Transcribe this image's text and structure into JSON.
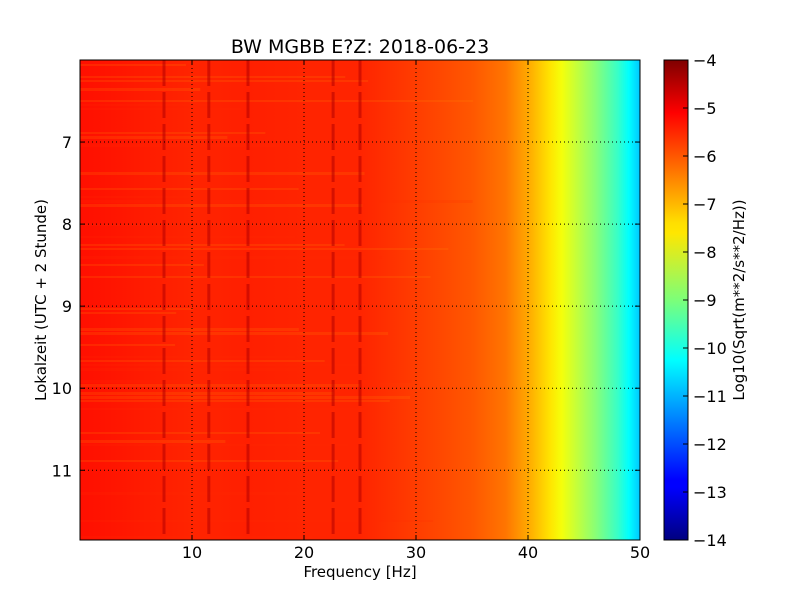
{
  "chart_data": {
    "type": "heatmap",
    "title": "BW MGBB E?Z: 2018-06-23",
    "xlabel": "Frequency [Hz]",
    "ylabel": "Lokalzeit (UTC + 2 Stunde)",
    "colorbar_label": "Log10(Sqrt(m**2/s**2/Hz))",
    "colormap": "jet",
    "xlim": [
      0,
      50
    ],
    "ylim": [
      6.0,
      11.85
    ],
    "y_inverted": true,
    "clim": [
      -14,
      -4
    ],
    "grid": true,
    "xticks": [
      10,
      20,
      30,
      40,
      50
    ],
    "xtick_labels": [
      "10",
      "20",
      "30",
      "40",
      "50"
    ],
    "yticks": [
      7,
      8,
      9,
      10,
      11
    ],
    "ytick_labels": [
      "7",
      "8",
      "9",
      "10",
      "11"
    ],
    "cticks": [
      -4,
      -5,
      -6,
      -7,
      -8,
      -9,
      -10,
      -11,
      -12,
      -13,
      -14
    ],
    "ctick_labels": [
      "−4",
      "−5",
      "−6",
      "−7",
      "−8",
      "−9",
      "−10",
      "−11",
      "−12",
      "−13",
      "−14"
    ],
    "spectral_profile": {
      "frequency_hz": [
        0,
        5,
        10,
        15,
        20,
        25,
        30,
        35,
        38,
        40,
        42,
        44,
        46,
        48,
        50
      ],
      "log10_amplitude": [
        -5.4,
        -5.5,
        -5.6,
        -5.55,
        -5.6,
        -5.6,
        -5.85,
        -6.1,
        -6.4,
        -6.9,
        -7.5,
        -8.2,
        -8.9,
        -9.7,
        -10.8
      ]
    },
    "spectral_lines_hz": [
      7.5,
      11.5,
      15.0,
      22.6,
      25.0
    ]
  }
}
